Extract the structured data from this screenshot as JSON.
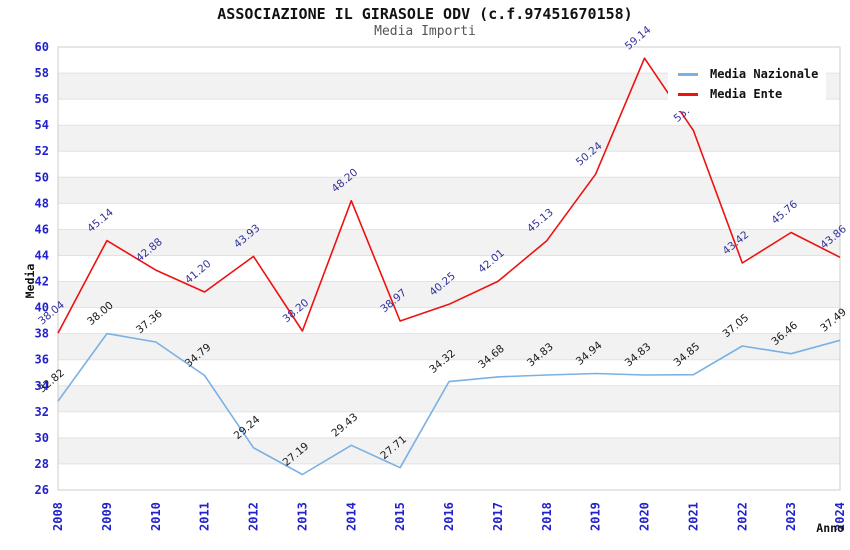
{
  "chart_data": {
    "type": "line",
    "title": "ASSOCIAZIONE IL GIRASOLE ODV (c.f.97451670158)",
    "subtitle": "Media Importi",
    "xlabel": "Anno",
    "ylabel": "Media",
    "ylim": [
      26,
      60
    ],
    "ytick_step": 2,
    "grid": true,
    "alternating_bands": true,
    "legend_position": "top-right",
    "x": [
      2008,
      2009,
      2010,
      2011,
      2012,
      2013,
      2014,
      2015,
      2016,
      2017,
      2018,
      2019,
      2020,
      2021,
      2022,
      2023,
      2024
    ],
    "series": [
      {
        "name": "Media Nazionale",
        "color": "#7ab1e3",
        "label_color": "#1a1a1a",
        "values": [
          32.82,
          38.0,
          37.36,
          34.79,
          29.24,
          27.19,
          29.43,
          27.71,
          34.32,
          34.68,
          34.83,
          34.94,
          34.83,
          34.85,
          37.05,
          36.46,
          37.49
        ]
      },
      {
        "name": "Media Ente",
        "color": "#ee1111",
        "label_color": "#333399",
        "values": [
          38.04,
          45.14,
          42.88,
          41.2,
          43.93,
          38.2,
          48.2,
          38.97,
          40.25,
          42.01,
          45.13,
          50.24,
          59.14,
          53.59,
          43.42,
          45.76,
          43.86
        ]
      }
    ],
    "colors": {
      "band": "#f2f2f2",
      "grid": "#e2e2e2",
      "plot_border": "#cccccc",
      "tick_label": "#2222cc",
      "axis_label": "#111111"
    }
  }
}
